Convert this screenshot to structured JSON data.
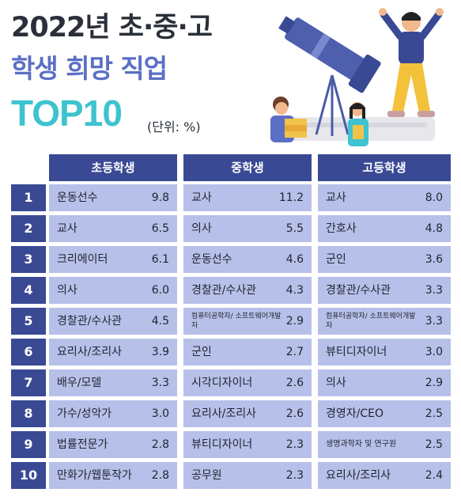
{
  "title": {
    "line1": "2022년 초·중·고",
    "line2": "학생 희망 직업",
    "line3": "TOP10",
    "unit": "(단위: %)"
  },
  "columns": [
    "초등학생",
    "중학생",
    "고등학생"
  ],
  "rows": [
    {
      "rank": "1",
      "elem": {
        "job": "운동선수",
        "val": "9.8"
      },
      "mid": {
        "job": "교사",
        "val": "11.2"
      },
      "high": {
        "job": "교사",
        "val": "8.0"
      }
    },
    {
      "rank": "2",
      "elem": {
        "job": "교사",
        "val": "6.5"
      },
      "mid": {
        "job": "의사",
        "val": "5.5"
      },
      "high": {
        "job": "간호사",
        "val": "4.8"
      }
    },
    {
      "rank": "3",
      "elem": {
        "job": "크리에이터",
        "val": "6.1"
      },
      "mid": {
        "job": "운동선수",
        "val": "4.6"
      },
      "high": {
        "job": "군인",
        "val": "3.6"
      }
    },
    {
      "rank": "4",
      "elem": {
        "job": "의사",
        "val": "6.0"
      },
      "mid": {
        "job": "경찰관/수사관",
        "val": "4.3"
      },
      "high": {
        "job": "경찰관/수사관",
        "val": "3.3"
      }
    },
    {
      "rank": "5",
      "elem": {
        "job": "경찰관/수사관",
        "val": "4.5"
      },
      "mid": {
        "job": "컴퓨터공학자/ 소프트웨어개발자",
        "val": "2.9"
      },
      "high": {
        "job": "컴퓨터공학자/ 소프트웨어개발자",
        "val": "3.3"
      }
    },
    {
      "rank": "6",
      "elem": {
        "job": "요리사/조리사",
        "val": "3.9"
      },
      "mid": {
        "job": "군인",
        "val": "2.7"
      },
      "high": {
        "job": "뷰티디자이너",
        "val": "3.0"
      }
    },
    {
      "rank": "7",
      "elem": {
        "job": "배우/모델",
        "val": "3.3"
      },
      "mid": {
        "job": "시각디자이너",
        "val": "2.6"
      },
      "high": {
        "job": "의사",
        "val": "2.9"
      }
    },
    {
      "rank": "8",
      "elem": {
        "job": "가수/성악가",
        "val": "3.0"
      },
      "mid": {
        "job": "요리사/조리사",
        "val": "2.6"
      },
      "high": {
        "job": "경영자/CEO",
        "val": "2.5"
      }
    },
    {
      "rank": "9",
      "elem": {
        "job": "법률전문가",
        "val": "2.8"
      },
      "mid": {
        "job": "뷰티디자이너",
        "val": "2.3"
      },
      "high": {
        "job": "생명과학자 및 연구원",
        "val": "2.5"
      }
    },
    {
      "rank": "10",
      "elem": {
        "job": "만화가/웹툰작가",
        "val": "2.8"
      },
      "mid": {
        "job": "공무원",
        "val": "2.3"
      },
      "high": {
        "job": "요리사/조리사",
        "val": "2.4"
      }
    }
  ],
  "colors": {
    "header_bg": "#3a4994",
    "cell_bg": "#b7c0e8",
    "title_accent": "#5b6fc4",
    "top10_color": "#3ec3cf"
  }
}
